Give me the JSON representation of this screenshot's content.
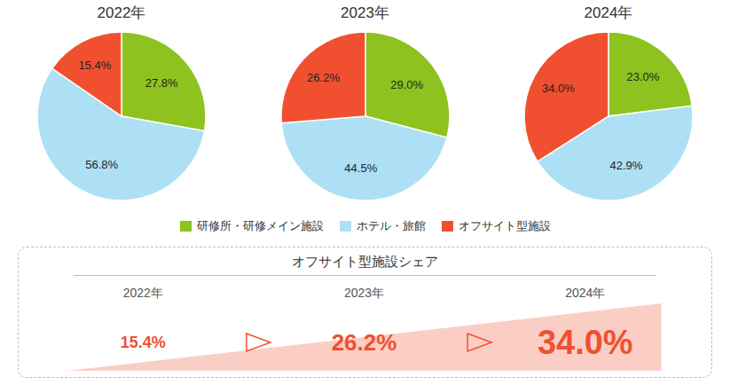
{
  "chart_data": [
    {
      "type": "pie",
      "title": "2022年",
      "categories": [
        "研修所・研修メイン施設",
        "ホテル・旅館",
        "オフサイト型施設"
      ],
      "values": [
        27.8,
        56.8,
        15.4
      ],
      "value_labels": [
        "27.8%",
        "56.8%",
        "15.4%"
      ],
      "colors": [
        "#8DC21F",
        "#ADE0F5",
        "#F05030"
      ],
      "data_labels": true,
      "legend": "bottom"
    },
    {
      "type": "pie",
      "title": "2023年",
      "categories": [
        "研修所・研修メイン施設",
        "ホテル・旅館",
        "オフサイト型施設"
      ],
      "values": [
        29.0,
        44.5,
        26.2
      ],
      "value_labels": [
        "29.0%",
        "44.5%",
        "26.2%"
      ],
      "colors": [
        "#8DC21F",
        "#ADE0F5",
        "#F05030"
      ],
      "data_labels": true
    },
    {
      "type": "pie",
      "title": "2024年",
      "categories": [
        "研修所・研修メイン施設",
        "ホテル・旅館",
        "オフサイト型施設"
      ],
      "values": [
        23.0,
        42.9,
        34.0
      ],
      "value_labels": [
        "23.0%",
        "42.9%",
        "34.0%"
      ],
      "colors": [
        "#8DC21F",
        "#ADE0F5",
        "#F05030"
      ],
      "data_labels": true
    },
    {
      "type": "table",
      "title": "オフサイト型施設シェア",
      "categories": [
        "2022年",
        "2023年",
        "2024年"
      ],
      "values": [
        15.4,
        26.2,
        34.0
      ],
      "value_labels": [
        "15.4%",
        "26.2%",
        "34.0%"
      ],
      "color": "#F05030",
      "data_labels": true
    }
  ]
}
